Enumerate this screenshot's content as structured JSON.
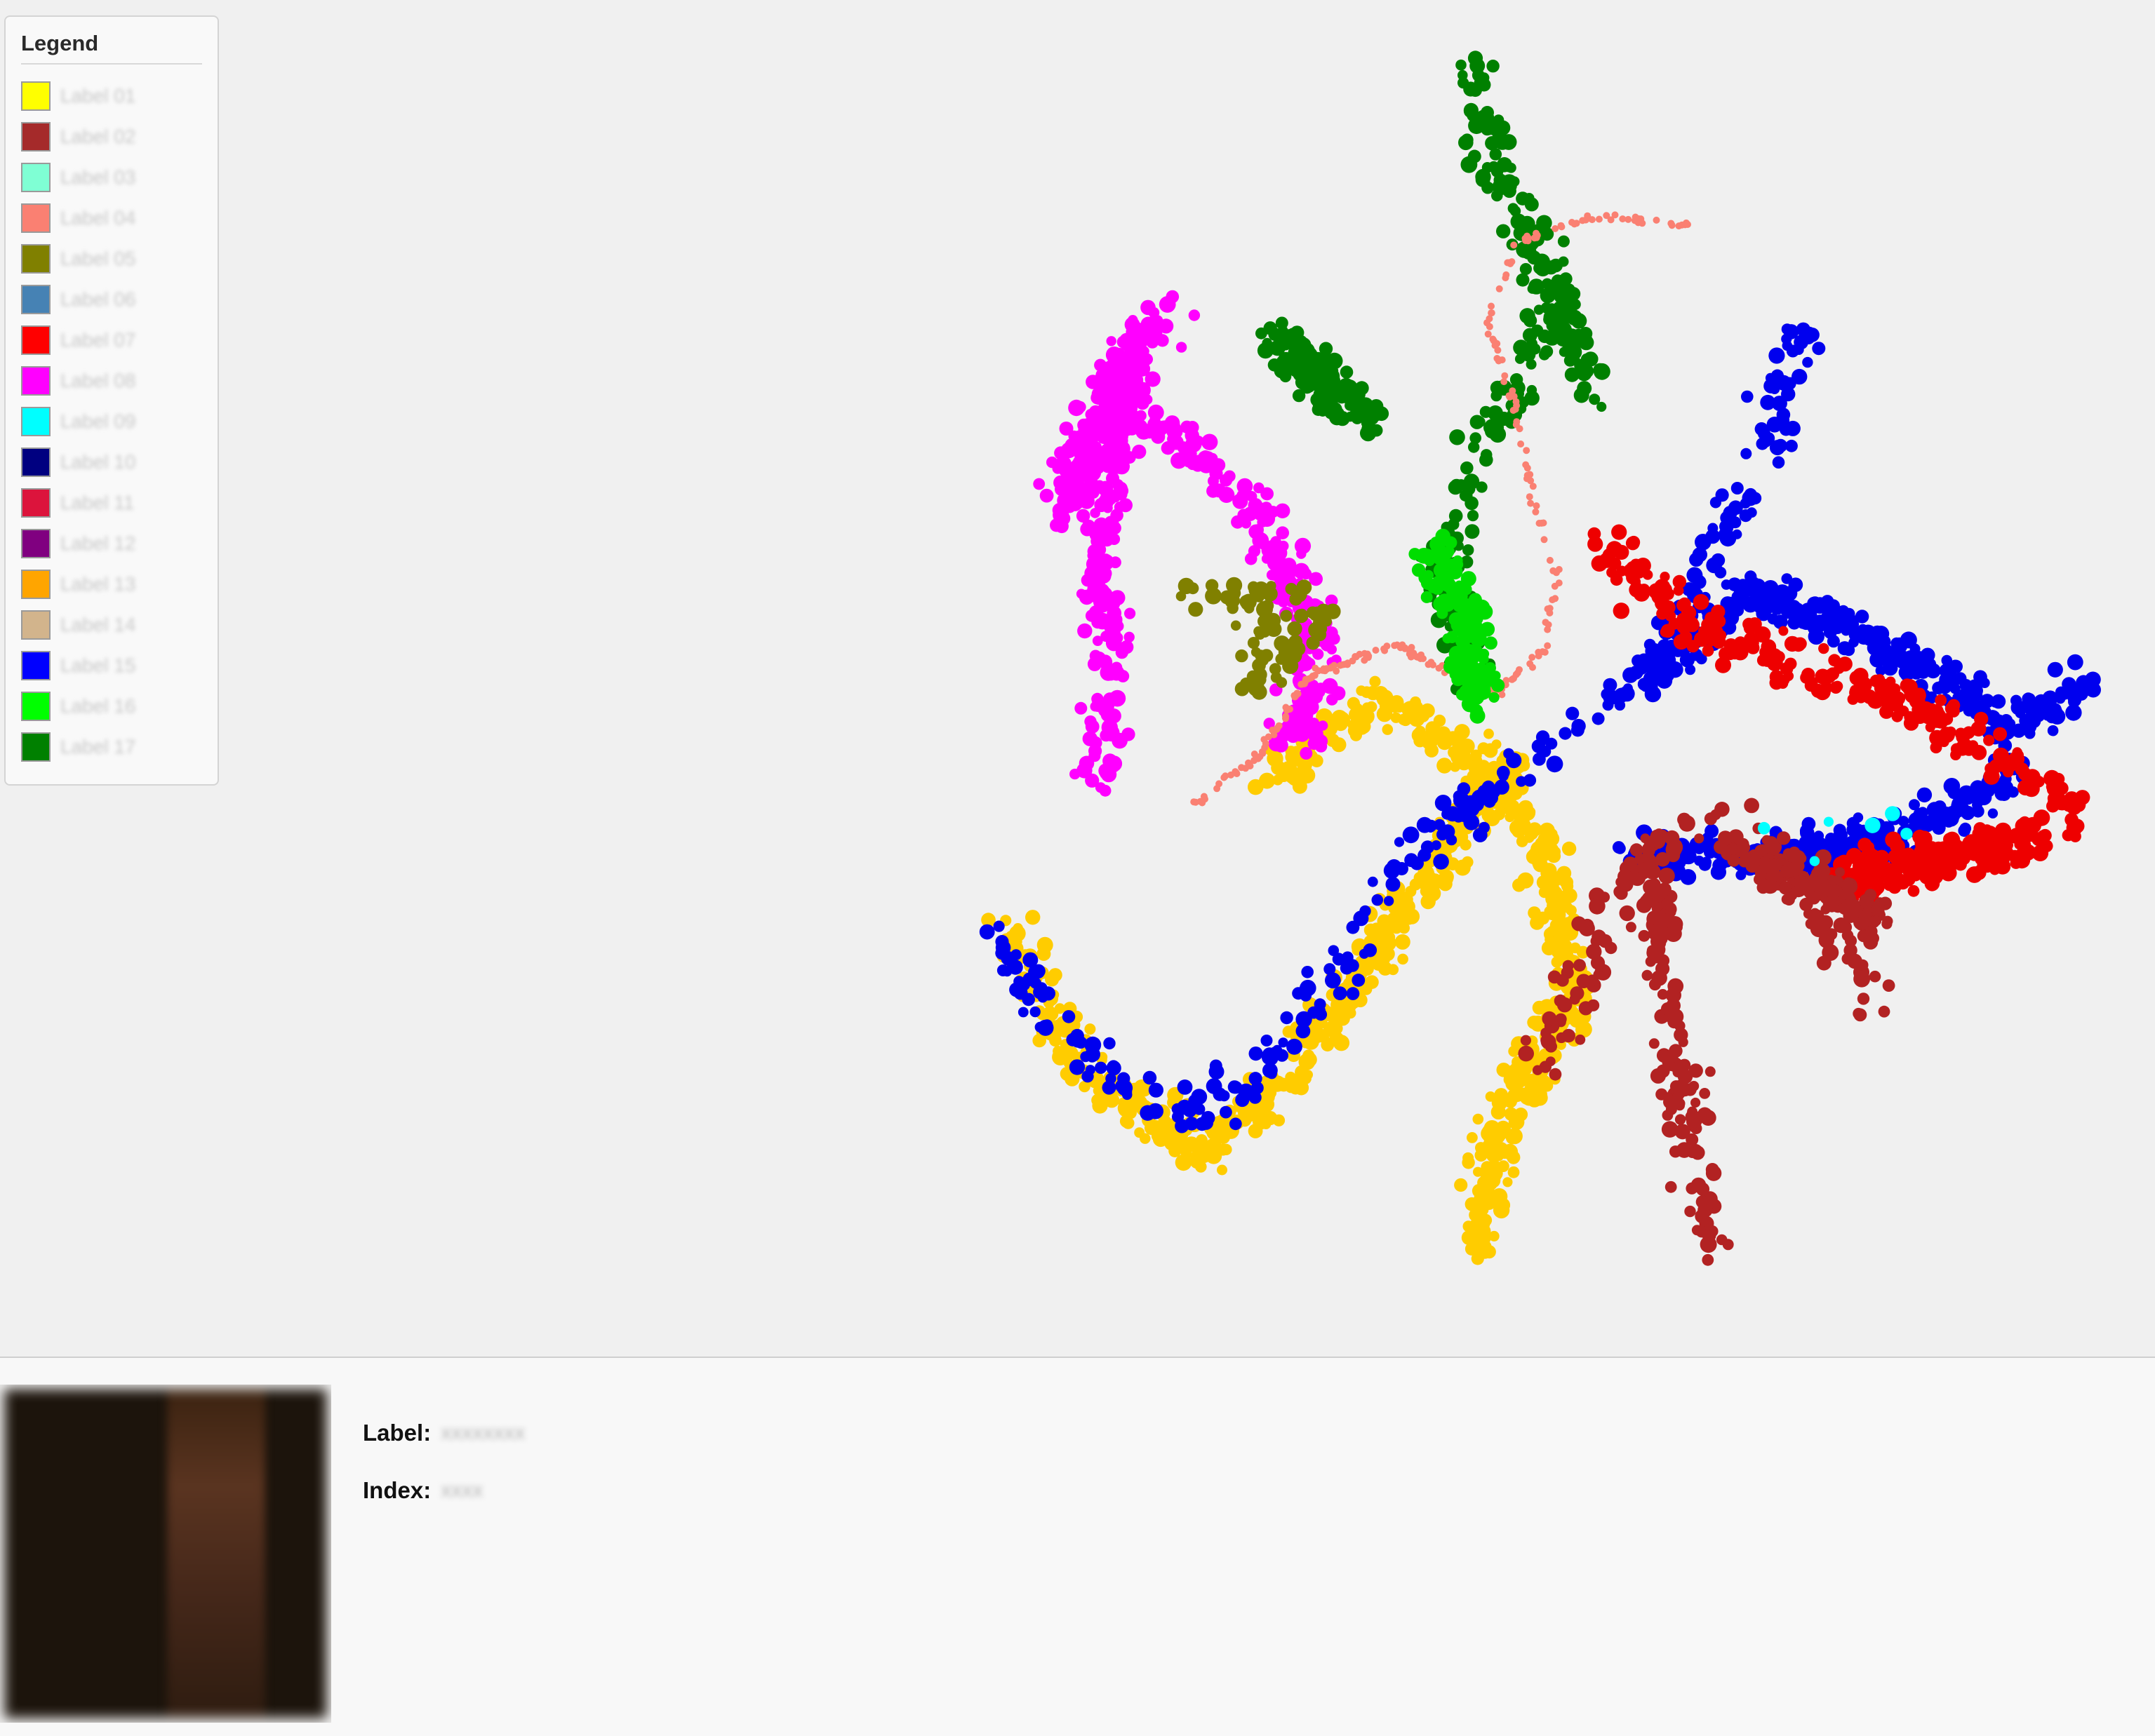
{
  "legend": {
    "title": "Legend",
    "items": [
      {
        "color": "#ffff00",
        "label": "Label 01"
      },
      {
        "color": "#a52a2a",
        "label": "Label 02"
      },
      {
        "color": "#7fffd4",
        "label": "Label 03"
      },
      {
        "color": "#fa8072",
        "label": "Label 04"
      },
      {
        "color": "#808000",
        "label": "Label 05"
      },
      {
        "color": "#4682b4",
        "label": "Label 06"
      },
      {
        "color": "#ff0000",
        "label": "Label 07"
      },
      {
        "color": "#ff00ff",
        "label": "Label 08"
      },
      {
        "color": "#00ffff",
        "label": "Label 09"
      },
      {
        "color": "#000080",
        "label": "Label 10"
      },
      {
        "color": "#dc143c",
        "label": "Label 11"
      },
      {
        "color": "#800080",
        "label": "Label 12"
      },
      {
        "color": "#ffa500",
        "label": "Label 13"
      },
      {
        "color": "#d2b48c",
        "label": "Label 14"
      },
      {
        "color": "#0000ff",
        "label": "Label 15"
      },
      {
        "color": "#00ff00",
        "label": "Label 16"
      },
      {
        "color": "#008000",
        "label": "Label 17"
      }
    ]
  },
  "info": {
    "label_caption": "Label:",
    "label_value": "xxxxxxxx",
    "index_caption": "Index:",
    "index_value": "xxxx"
  },
  "chart_data": {
    "type": "scatter",
    "title": "",
    "xlabel": "",
    "ylabel": "",
    "clusters": [
      {
        "color": "#ffcc00",
        "count": 900
      },
      {
        "color": "#0000ee",
        "count": 900
      },
      {
        "color": "#ee0000",
        "count": 500
      },
      {
        "color": "#b22222",
        "count": 420
      },
      {
        "color": "#ff00ff",
        "count": 650
      },
      {
        "color": "#008000",
        "count": 420
      },
      {
        "color": "#fa8072",
        "count": 260
      },
      {
        "color": "#00dd00",
        "count": 150
      },
      {
        "color": "#808000",
        "count": 80
      },
      {
        "color": "#00ffff",
        "count": 6
      }
    ]
  }
}
